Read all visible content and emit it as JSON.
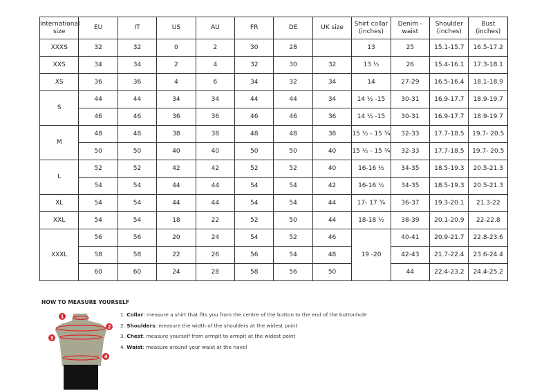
{
  "table": {
    "headers": [
      "International size",
      "EU",
      "IT",
      "US",
      "AU",
      "FR",
      "DE",
      "UK size",
      "Shirt collar (inches)",
      "Denim - waist",
      "Shoulder (inches)",
      "Bust (inches)"
    ],
    "groups": [
      {
        "size": "XXXS",
        "rows": [
          [
            "32",
            "32",
            "0",
            "2",
            "30",
            "28",
            "",
            "13",
            "25",
            "15.1-15.7",
            "16.5-17.2"
          ]
        ]
      },
      {
        "size": "XXS",
        "rows": [
          [
            "34",
            "34",
            "2",
            "4",
            "32",
            "30",
            "32",
            "13 ½",
            "26",
            "15.4-16.1",
            "17.3-18.1"
          ]
        ]
      },
      {
        "size": "XS",
        "rows": [
          [
            "36",
            "36",
            "4",
            "6",
            "34",
            "32",
            "34",
            "14",
            "27-29",
            "16.5-16.4",
            "18.1-18.9"
          ]
        ]
      },
      {
        "size": "S",
        "rows": [
          [
            "44",
            "44",
            "34",
            "34",
            "44",
            "44",
            "34",
            "14 ½ -15",
            "30-31",
            "16.9-17.7",
            "18.9-19.7"
          ],
          [
            "46",
            "46",
            "36",
            "36",
            "46",
            "46",
            "36",
            "14 ½ -15",
            "30-31",
            "16.9-17.7",
            "18.9-19.7"
          ]
        ]
      },
      {
        "size": "M",
        "rows": [
          [
            "48",
            "48",
            "38",
            "38",
            "48",
            "48",
            "38",
            "15 ½ - 15 ¾",
            "32-33",
            "17.7-18.5",
            "19.7- 20.5"
          ],
          [
            "50",
            "50",
            "40",
            "40",
            "50",
            "50",
            "40",
            "15 ½ - 15 ¾",
            "32-33",
            "17.7-18.5",
            "19.7- 20.5"
          ]
        ]
      },
      {
        "size": "L",
        "rows": [
          [
            "52",
            "52",
            "42",
            "42",
            "52",
            "52",
            "40",
            "16-16 ½",
            "34-35",
            "18.5-19.3",
            "20.5-21.3"
          ],
          [
            "54",
            "54",
            "44",
            "44",
            "54",
            "54",
            "42",
            "16-16 ½",
            "34-35",
            "18.5-19.3",
            "20.5-21.3"
          ]
        ]
      },
      {
        "size": "XL",
        "rows": [
          [
            "54",
            "54",
            "44",
            "44",
            "54",
            "54",
            "44",
            "17- 17 ¾",
            "36-37",
            "19.3-20.1",
            "21.3-22"
          ]
        ]
      },
      {
        "size": "XXL",
        "rows": [
          [
            "54",
            "54",
            "18",
            "22",
            "52",
            "50",
            "44",
            "18-18 ½",
            "38-39",
            "20.1-20.9",
            "22-22.8"
          ]
        ]
      },
      {
        "size": "XXXL",
        "collar": "19 -20",
        "rows": [
          [
            "56",
            "56",
            "20",
            "24",
            "54",
            "52",
            "46",
            "40-41",
            "20.9-21.7",
            "22.8-23.6"
          ],
          [
            "58",
            "58",
            "22",
            "26",
            "56",
            "54",
            "48",
            "42-43",
            "21.7-22.4",
            "23.6-24.4"
          ],
          [
            "60",
            "60",
            "24",
            "28",
            "58",
            "56",
            "50",
            "44",
            "22.4-23.2",
            "24.4-25.2"
          ]
        ]
      }
    ]
  },
  "measure": {
    "title": "HOW TO MEASURE YOURSELF",
    "steps": [
      {
        "num": "1.",
        "term": "Collar",
        "text": ": measure a shirt that fits you from the centre of the button to the end of the buttonhole"
      },
      {
        "num": "2.",
        "term": "Shoulders",
        "text": ": measure the width of the shoulders at the widest point"
      },
      {
        "num": "3.",
        "term": "Chest",
        "text": ": measure yourself from armpit to armpit at the widest point"
      },
      {
        "num": "4.",
        "term": "Waist",
        "text": ": measure around your waist at the navel"
      }
    ],
    "markers": [
      "1",
      "2",
      "3",
      "4"
    ],
    "colors": {
      "body": "#a8a790",
      "accent": "#d9262e",
      "pants": "#111111"
    }
  }
}
